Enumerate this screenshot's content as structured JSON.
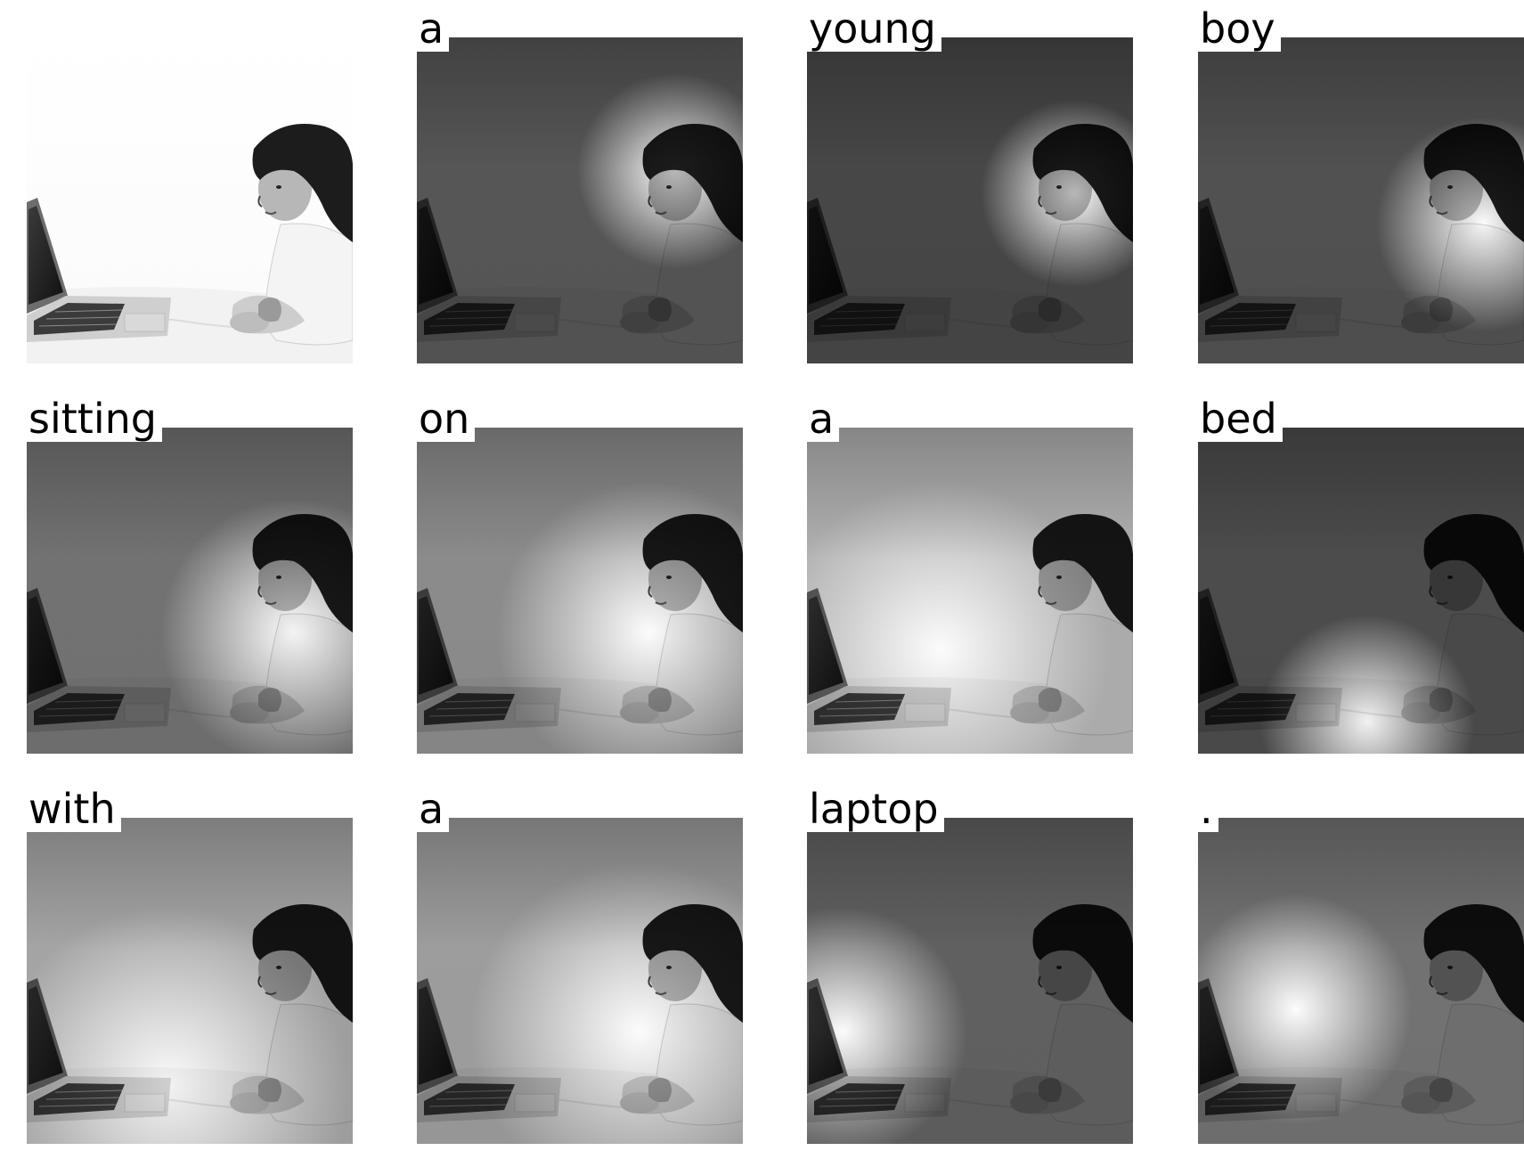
{
  "caption_words": [
    "a",
    "young",
    "boy",
    "sitting",
    "on",
    "a",
    "bed",
    "with",
    "a",
    "laptop",
    "."
  ],
  "panels": [
    {
      "word": null
    },
    {
      "word": "a"
    },
    {
      "word": "young"
    },
    {
      "word": "boy"
    },
    {
      "word": "sitting"
    },
    {
      "word": "on"
    },
    {
      "word": "a"
    },
    {
      "word": "bed"
    },
    {
      "word": "with"
    },
    {
      "word": "a"
    },
    {
      "word": "laptop"
    },
    {
      "word": "."
    }
  ]
}
